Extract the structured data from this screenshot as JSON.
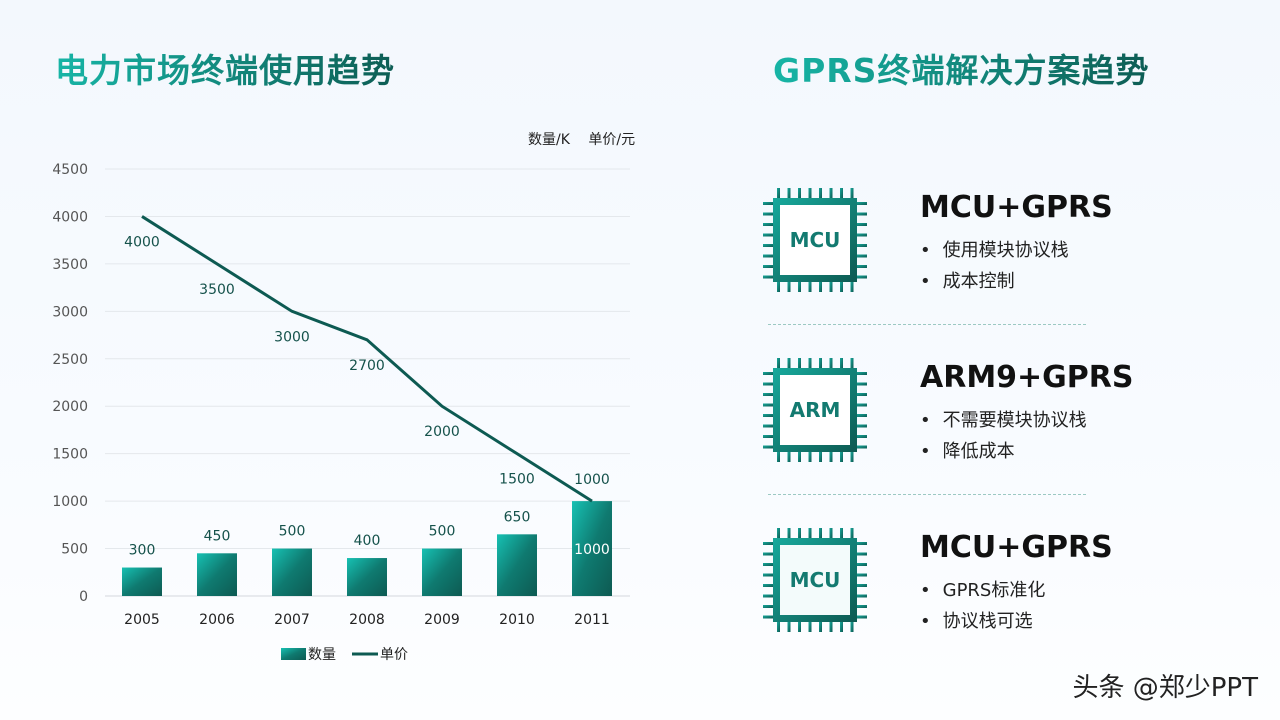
{
  "left_title": "电力市场终端使用趋势",
  "right_title": "GPRS终端解决方案趋势",
  "units_label": "数量/K 单价/元",
  "chart_data": {
    "type": "bar+line",
    "categories": [
      "2005",
      "2006",
      "2007",
      "2008",
      "2009",
      "2010",
      "2011"
    ],
    "series": [
      {
        "name": "数量",
        "type": "bar",
        "values": [
          300,
          450,
          500,
          400,
          500,
          650,
          1000
        ]
      },
      {
        "name": "单价",
        "type": "line",
        "values": [
          4000,
          3500,
          3000,
          2700,
          2000,
          1500,
          1000
        ]
      }
    ],
    "ylim": [
      0,
      4500
    ],
    "yticks": [
      0,
      500,
      1000,
      1500,
      2000,
      2500,
      3000,
      3500,
      4000,
      4500
    ],
    "grid": true,
    "legend": "bottom",
    "colors": {
      "bar_light": "#17c1b3",
      "bar_dark": "#0d5a52",
      "line": "#0d5a52"
    }
  },
  "solutions": [
    {
      "chip": "MCU",
      "title": "MCU+GPRS",
      "bullets": [
        "使用模块协议栈",
        "成本控制"
      ]
    },
    {
      "chip": "ARM",
      "title": "ARM9+GPRS",
      "bullets": [
        "不需要模块协议栈",
        "降低成本"
      ]
    },
    {
      "chip": "MCU",
      "title": "MCU+GPRS",
      "bullets": [
        "GPRS标准化",
        "协议栈可选"
      ]
    }
  ],
  "watermark": "头条 @郑少PPT"
}
